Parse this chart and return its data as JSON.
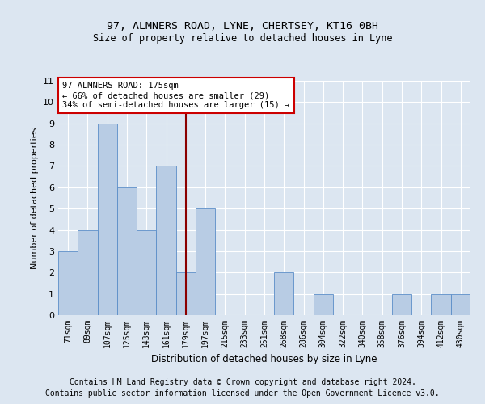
{
  "title_line1": "97, ALMNERS ROAD, LYNE, CHERTSEY, KT16 0BH",
  "title_line2": "Size of property relative to detached houses in Lyne",
  "xlabel": "Distribution of detached houses by size in Lyne",
  "ylabel": "Number of detached properties",
  "categories": [
    "71sqm",
    "89sqm",
    "107sqm",
    "125sqm",
    "143sqm",
    "161sqm",
    "179sqm",
    "197sqm",
    "215sqm",
    "233sqm",
    "251sqm",
    "268sqm",
    "286sqm",
    "304sqm",
    "322sqm",
    "340sqm",
    "358sqm",
    "376sqm",
    "394sqm",
    "412sqm",
    "430sqm"
  ],
  "values": [
    3,
    4,
    9,
    6,
    4,
    7,
    2,
    5,
    0,
    0,
    0,
    2,
    0,
    1,
    0,
    0,
    0,
    1,
    0,
    1,
    1
  ],
  "bar_color": "#b8cce4",
  "bar_edge_color": "#5b8dc8",
  "vline_x": 6,
  "vline_color": "#8b0000",
  "annotation_box_color": "#cc0000",
  "annotation_text_line1": "97 ALMNERS ROAD: 175sqm",
  "annotation_text_line2": "← 66% of detached houses are smaller (29)",
  "annotation_text_line3": "34% of semi-detached houses are larger (15) →",
  "ylim": [
    0,
    11
  ],
  "yticks": [
    0,
    1,
    2,
    3,
    4,
    5,
    6,
    7,
    8,
    9,
    10,
    11
  ],
  "footer_line1": "Contains HM Land Registry data © Crown copyright and database right 2024.",
  "footer_line2": "Contains public sector information licensed under the Open Government Licence v3.0.",
  "bg_color": "#dce6f1",
  "plot_bg_color": "#dce6f1",
  "grid_color": "#ffffff",
  "title_fontsize": 9.5,
  "subtitle_fontsize": 8.5,
  "footer_fontsize": 7,
  "ann_fontsize": 7.5
}
